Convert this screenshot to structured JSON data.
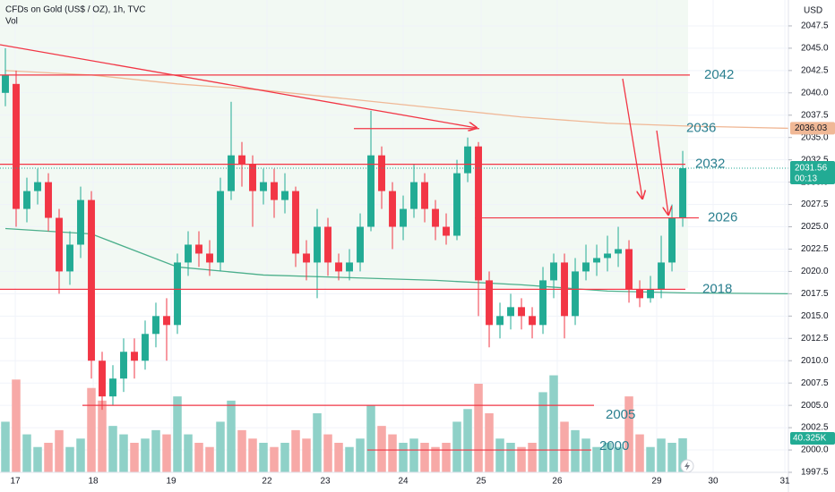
{
  "chart_data": {
    "type": "candlestick",
    "title": "CFDs on Gold (US$ / OZ), 1h, TVC",
    "volume_title": "Vol",
    "currency": "USD",
    "x": [
      0,
      1,
      2,
      3,
      4,
      5,
      6,
      7,
      8,
      9,
      10,
      11,
      12,
      13,
      14,
      15,
      16,
      17,
      18,
      19,
      20,
      21,
      22,
      23,
      24,
      25,
      26,
      27,
      28,
      29,
      30,
      31,
      32,
      33,
      34,
      35,
      36,
      37,
      38,
      39,
      40,
      41,
      42,
      43,
      44,
      45,
      46,
      47,
      48,
      49,
      50,
      51,
      52,
      53,
      54,
      55,
      56,
      57,
      58,
      59,
      60,
      61,
      62,
      63
    ],
    "open": [
      2040,
      2041,
      2027,
      2029,
      2030,
      2026,
      2020,
      2023,
      2028,
      2010,
      2006,
      2008,
      2011,
      2010,
      2013,
      2015,
      2014,
      2021,
      2023,
      2022,
      2021,
      2029,
      2033,
      2032,
      2029,
      2030,
      2028,
      2029,
      2022,
      2021,
      2025,
      2021,
      2020,
      2021,
      2025,
      2033,
      2029,
      2025,
      2027,
      2030,
      2027,
      2025,
      2024,
      2031,
      2034,
      2019,
      2014,
      2015,
      2016,
      2015,
      2014,
      2019,
      2021,
      2015,
      2020,
      2021,
      2021.5,
      2022,
      2022.5,
      2018,
      2017,
      2018,
      2021,
      2026
    ],
    "high": [
      2045,
      2042.5,
      2030.5,
      2031.5,
      2031,
      2027,
      2024.5,
      2029.5,
      2029,
      2011,
      2009.5,
      2012.5,
      2012.5,
      2014.5,
      2016.5,
      2017,
      2022,
      2024.5,
      2024.5,
      2023.5,
      2030.5,
      2039,
      2034.5,
      2033,
      2031.5,
      2031.5,
      2031,
      2029.5,
      2023.5,
      2027,
      2026,
      2022,
      2022.5,
      2026.5,
      2038,
      2034,
      2030,
      2028.5,
      2032,
      2031,
      2028,
      2026.5,
      2032.5,
      2035,
      2034.5,
      2020,
      2016.5,
      2017.5,
      2017,
      2016,
      2020.5,
      2022,
      2022,
      2021.5,
      2023,
      2023,
      2024,
      2025,
      2023.5,
      2019,
      2019.5,
      2024,
      2027.5,
      2033.5
    ],
    "low": [
      2038.5,
      2025,
      2025.5,
      2027.5,
      2024.5,
      2017.5,
      2018.5,
      2021.5,
      2008,
      2004.5,
      2005,
      2006.5,
      2008,
      2009,
      2011.5,
      2010,
      2013,
      2019.5,
      2020.5,
      2019.5,
      2020,
      2028,
      2029.5,
      2025,
      2027.5,
      2026,
      2026.5,
      2020.5,
      2019,
      2017,
      2019.5,
      2019,
      2019,
      2020,
      2024.5,
      2027,
      2022.5,
      2023.5,
      2026,
      2025.5,
      2023.5,
      2023,
      2023.5,
      2030,
      2015,
      2011.5,
      2012.5,
      2013.5,
      2013.5,
      2012.5,
      2013,
      2017,
      2012.5,
      2014,
      2019,
      2019.5,
      2020,
      2020.5,
      2016.5,
      2016,
      2016.5,
      2017,
      2020,
      2025
    ],
    "close": [
      2042,
      2027,
      2029,
      2030,
      2026,
      2020,
      2023,
      2028,
      2010,
      2006,
      2008,
      2011,
      2010,
      2013,
      2015,
      2014,
      2021,
      2023,
      2022,
      2021,
      2029,
      2033,
      2032,
      2029,
      2030,
      2028,
      2029,
      2022,
      2021,
      2025,
      2021,
      2020,
      2021,
      2025,
      2033,
      2029,
      2025,
      2027,
      2030,
      2027,
      2025,
      2024,
      2031,
      2034,
      2019,
      2014,
      2015,
      2016,
      2015,
      2014,
      2019,
      2021,
      2015,
      2020,
      2021,
      2021.5,
      2022,
      2022.5,
      2018,
      2017,
      2018,
      2021,
      2026,
      2031.56
    ],
    "volume": [
      60000,
      110000,
      45000,
      30000,
      35000,
      50000,
      30000,
      40000,
      100000,
      85000,
      55000,
      45000,
      35000,
      40000,
      50000,
      45000,
      90000,
      45000,
      35000,
      30000,
      60000,
      85000,
      50000,
      40000,
      35000,
      30000,
      35000,
      50000,
      40000,
      70000,
      45000,
      35000,
      30000,
      40000,
      80000,
      55000,
      45000,
      35000,
      40000,
      35000,
      30000,
      35000,
      60000,
      75000,
      105000,
      70000,
      40000,
      35000,
      30000,
      35000,
      95000,
      115000,
      60000,
      50000,
      40000,
      30000,
      35000,
      30000,
      90000,
      45000,
      30000,
      40000,
      35000,
      40325
    ],
    "up_color": "#22ab94",
    "down_color": "#f23645",
    "volume_up_color": "#8fd1c8",
    "volume_down_color": "#f7a9a7",
    "lines": [
      {
        "color": "#f0b896",
        "x": [
          0,
          8,
          16,
          24,
          32,
          40,
          48,
          56,
          63,
          72.83
        ],
        "values": [
          2042.5,
          2042,
          2041,
          2040.3,
          2039.3,
          2038.3,
          2037.3,
          2036.6,
          2036.3,
          2036.03
        ]
      },
      {
        "color": "#4caf8c",
        "x": [
          0,
          8,
          16,
          24,
          32,
          40,
          48,
          56,
          63,
          72.83
        ],
        "values": [
          2024.8,
          2024.2,
          2020.5,
          2019.6,
          2019.3,
          2019,
          2018.5,
          2017.8,
          2017.6,
          2017.5
        ]
      }
    ],
    "ma_tag": 2036.03,
    "last_price": 2031.56,
    "countdown": "00:13",
    "volume_tag": {
      "value": 40325,
      "label": "40.325K"
    },
    "levels": [
      2042,
      2036,
      2032,
      2026,
      2018,
      2005,
      2000
    ],
    "level_color": "#f23645",
    "level_label_color": "#2a7f8f",
    "xlim": [
      -0.5,
      72.83
    ],
    "ylim": [
      1997.5,
      2050.4
    ],
    "volume_lim": [
      0,
      560000
    ],
    "grid": true,
    "xticks": [
      {
        "value": 0.92,
        "label": "17"
      },
      {
        "value": 8.17,
        "label": "18"
      },
      {
        "value": 15.42,
        "label": "19"
      },
      {
        "value": 24.33,
        "label": "22"
      },
      {
        "value": 29.75,
        "label": "23"
      },
      {
        "value": 37,
        "label": "24"
      },
      {
        "value": 44.25,
        "label": "25"
      },
      {
        "value": 51.33,
        "label": "26"
      },
      {
        "value": 60.58,
        "label": "29"
      },
      {
        "value": 65.83,
        "label": "30"
      },
      {
        "value": 72.5,
        "label": "31"
      }
    ],
    "yticks": [
      {
        "value": 1997.5,
        "label": "1997.5"
      },
      {
        "value": 2000,
        "label": "2000.0"
      },
      {
        "value": 2002.5,
        "label": "2002.5"
      },
      {
        "value": 2005,
        "label": "2005.0"
      },
      {
        "value": 2007.5,
        "label": "2007.5"
      },
      {
        "value": 2010,
        "label": "2010.0"
      },
      {
        "value": 2012.5,
        "label": "2012.5"
      },
      {
        "value": 2015,
        "label": "2015.0"
      },
      {
        "value": 2017.5,
        "label": "2017.5"
      },
      {
        "value": 2020,
        "label": "2020.0"
      },
      {
        "value": 2022.5,
        "label": "2022.5"
      },
      {
        "value": 2025,
        "label": "2025.0"
      },
      {
        "value": 2027.5,
        "label": "2027.5"
      },
      {
        "value": 2030,
        "label": "2030.0"
      },
      {
        "value": 2032.5,
        "label": "2032.5"
      },
      {
        "value": 2035,
        "label": "2035.0"
      },
      {
        "value": 2037.5,
        "label": "2037.5"
      },
      {
        "value": 2040,
        "label": "2040.0"
      },
      {
        "value": 2042.5,
        "label": "2042.5"
      },
      {
        "value": 2045,
        "label": "2045.0"
      },
      {
        "value": 2047.5,
        "label": "2047.5"
      }
    ]
  }
}
